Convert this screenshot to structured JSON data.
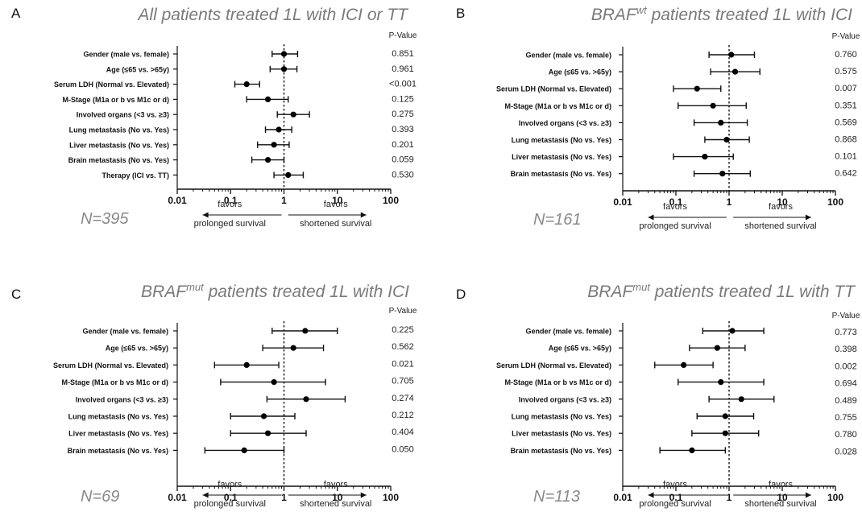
{
  "chart_data": [
    {
      "type": "forest",
      "panel": "A",
      "title": {
        "pre": "All patients treated 1L with ICI or TT",
        "sup": "",
        "post": ""
      },
      "pvalue_header": "P-Value",
      "n_label": "N=395",
      "xscale": "log",
      "xlim": [
        0.01,
        100
      ],
      "xticks": [
        "0.01",
        "0.1",
        "1",
        "10",
        "100"
      ],
      "reference_line": 1,
      "favors_left": [
        "favors",
        "prolonged survival"
      ],
      "favors_right": [
        "favors",
        "shortened survival"
      ],
      "rows": [
        {
          "label": "Gender (male vs. female)",
          "hr": 1.0,
          "lo": 0.6,
          "hi": 1.8,
          "p": "0.851"
        },
        {
          "label": "Age (≤65 vs. >65y)",
          "hr": 1.0,
          "lo": 0.55,
          "hi": 1.75,
          "p": "0.961"
        },
        {
          "label": "Serum LDH (Normal vs. Elevated)",
          "hr": 0.2,
          "lo": 0.12,
          "hi": 0.35,
          "p": "<0.001"
        },
        {
          "label": "M-Stage (M1a or b vs M1c or d)",
          "hr": 0.5,
          "lo": 0.2,
          "hi": 1.2,
          "p": "0.125"
        },
        {
          "label": "Involved organs (<3 vs. ≥3)",
          "hr": 1.5,
          "lo": 0.75,
          "hi": 3.0,
          "p": "0.275"
        },
        {
          "label": "Lung metastasis (No vs. Yes)",
          "hr": 0.8,
          "lo": 0.45,
          "hi": 1.4,
          "p": "0.393"
        },
        {
          "label": "Liver metastasis (No vs. Yes)",
          "hr": 0.65,
          "lo": 0.32,
          "hi": 1.25,
          "p": "0.201"
        },
        {
          "label": "Brain metastasis (No vs. Yes)",
          "hr": 0.5,
          "lo": 0.25,
          "hi": 1.0,
          "p": "0.059"
        },
        {
          "label": "Therapy (ICI vs. TT)",
          "hr": 1.2,
          "lo": 0.65,
          "hi": 2.3,
          "p": "0.530"
        }
      ]
    },
    {
      "type": "forest",
      "panel": "B",
      "title": {
        "pre": "BRAF",
        "sup": "wt",
        "post": " patients treated 1L with ICI"
      },
      "pvalue_header": "P-Value",
      "n_label": "N=161",
      "xscale": "log",
      "xlim": [
        0.01,
        100
      ],
      "xticks": [
        "0.01",
        "0.1",
        "1",
        "10",
        "100"
      ],
      "reference_line": 1,
      "favors_left": [
        "favors",
        "prolonged survival"
      ],
      "favors_right": [
        "favors",
        "shortened survival"
      ],
      "rows": [
        {
          "label": "Gender (male vs. female)",
          "hr": 1.1,
          "lo": 0.42,
          "hi": 3.0,
          "p": "0.760"
        },
        {
          "label": "Age (≤65 vs. >65y)",
          "hr": 1.3,
          "lo": 0.45,
          "hi": 3.8,
          "p": "0.575"
        },
        {
          "label": "Serum LDH (Normal vs. Elevated)",
          "hr": 0.25,
          "lo": 0.09,
          "hi": 0.7,
          "p": "0.007"
        },
        {
          "label": "M-Stage (M1a or b vs M1c or d)",
          "hr": 0.5,
          "lo": 0.11,
          "hi": 2.1,
          "p": "0.351"
        },
        {
          "label": "Involved organs (<3 vs. ≥3)",
          "hr": 0.7,
          "lo": 0.22,
          "hi": 2.2,
          "p": "0.569"
        },
        {
          "label": "Lung metastasis (No vs. Yes)",
          "hr": 0.9,
          "lo": 0.35,
          "hi": 2.4,
          "p": "0.868"
        },
        {
          "label": "Liver metastasis (No vs. Yes)",
          "hr": 0.35,
          "lo": 0.09,
          "hi": 1.2,
          "p": "0.101"
        },
        {
          "label": "Brain metastasis (No vs. Yes)",
          "hr": 0.75,
          "lo": 0.22,
          "hi": 2.5,
          "p": "0.642"
        }
      ]
    },
    {
      "type": "forest",
      "panel": "C",
      "title": {
        "pre": "BRAF",
        "sup": "mut",
        "post": " patients treated 1L with ICI"
      },
      "pvalue_header": "P-Value",
      "n_label": "N=69",
      "xscale": "log",
      "xlim": [
        0.01,
        100
      ],
      "xticks": [
        "0.01",
        "0.1",
        "1",
        "10",
        "100"
      ],
      "reference_line": 1,
      "favors_left": [
        "favors",
        "prolonged survival"
      ],
      "favors_right": [
        "favors",
        "shortened survival"
      ],
      "rows": [
        {
          "label": "Gender (male vs. female)",
          "hr": 2.5,
          "lo": 0.6,
          "hi": 10.0,
          "p": "0.225"
        },
        {
          "label": "Age (≤65 vs. >65y)",
          "hr": 1.5,
          "lo": 0.4,
          "hi": 5.5,
          "p": "0.562"
        },
        {
          "label": "Serum LDH (Normal vs. Elevated)",
          "hr": 0.2,
          "lo": 0.05,
          "hi": 0.8,
          "p": "0.021"
        },
        {
          "label": "M-Stage (M1a or b vs M1c or d)",
          "hr": 0.65,
          "lo": 0.065,
          "hi": 6.0,
          "p": "0.705"
        },
        {
          "label": "Involved organs (<3 vs. ≥3)",
          "hr": 2.6,
          "lo": 0.48,
          "hi": 14.0,
          "p": "0.274"
        },
        {
          "label": "Lung metastasis (No vs. Yes)",
          "hr": 0.42,
          "lo": 0.1,
          "hi": 1.6,
          "p": "0.212"
        },
        {
          "label": "Liver metastasis (No vs. Yes)",
          "hr": 0.5,
          "lo": 0.1,
          "hi": 2.6,
          "p": "0.404"
        },
        {
          "label": "Brain metastasis (No vs. Yes)",
          "hr": 0.18,
          "lo": 0.033,
          "hi": 1.0,
          "p": "0.050"
        }
      ]
    },
    {
      "type": "forest",
      "panel": "D",
      "title": {
        "pre": "BRAF",
        "sup": "mut",
        "post": " patients treated 1L with TT"
      },
      "pvalue_header": "P-Value",
      "n_label": "N=113",
      "xscale": "log",
      "xlim": [
        0.01,
        100
      ],
      "xticks": [
        "0.01",
        "0.1",
        "1",
        "10",
        "100"
      ],
      "reference_line": 1,
      "favors_left": [
        "favors",
        "prolonged survival"
      ],
      "favors_right": [
        "favors",
        "shortened survival"
      ],
      "rows": [
        {
          "label": "Gender (male vs. female)",
          "hr": 1.15,
          "lo": 0.32,
          "hi": 4.5,
          "p": "0.773"
        },
        {
          "label": "Age (≤65 vs. >65y)",
          "hr": 0.6,
          "lo": 0.18,
          "hi": 2.0,
          "p": "0.398"
        },
        {
          "label": "Serum LDH (Normal vs. Elevated)",
          "hr": 0.14,
          "lo": 0.04,
          "hi": 0.5,
          "p": "0.002"
        },
        {
          "label": "M-Stage (M1a or b vs M1c or d)",
          "hr": 0.7,
          "lo": 0.11,
          "hi": 4.5,
          "p": "0.694"
        },
        {
          "label": "Involved organs (<3 vs. ≥3)",
          "hr": 1.7,
          "lo": 0.42,
          "hi": 7.0,
          "p": "0.489"
        },
        {
          "label": "Lung metastasis (No vs. Yes)",
          "hr": 0.85,
          "lo": 0.25,
          "hi": 2.9,
          "p": "0.755"
        },
        {
          "label": "Liver metastasis (No vs. Yes)",
          "hr": 0.85,
          "lo": 0.2,
          "hi": 3.6,
          "p": "0.780"
        },
        {
          "label": "Brain metastasis (No vs. Yes)",
          "hr": 0.2,
          "lo": 0.05,
          "hi": 0.85,
          "p": "0.028"
        }
      ]
    }
  ]
}
